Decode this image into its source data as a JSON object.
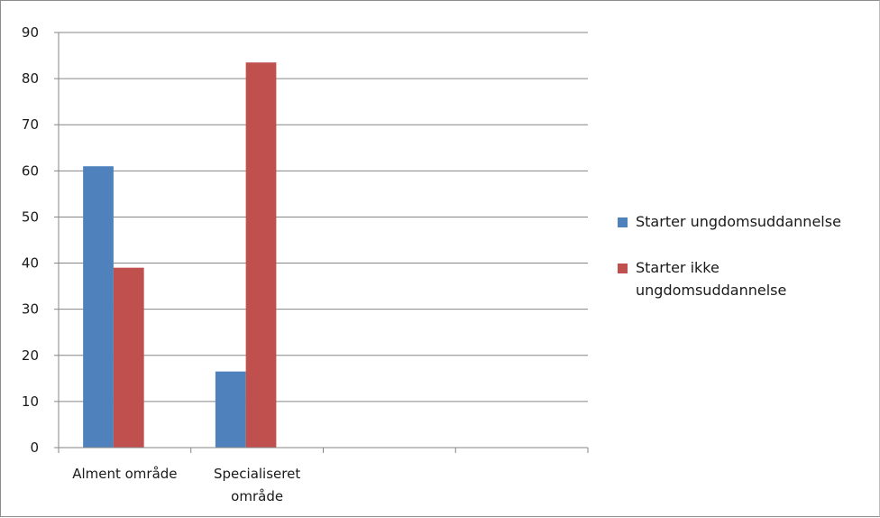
{
  "chart_data": {
    "type": "bar",
    "categories": [
      "Alment område",
      "Specialiseret område",
      "",
      ""
    ],
    "series": [
      {
        "name": "Starter ungdomsuddannelse",
        "color": "#4f81bd",
        "values": [
          61,
          16.5,
          null,
          null
        ]
      },
      {
        "name": "Starter ikke ungdomsuddannelse",
        "color": "#c0504d",
        "values": [
          39,
          83.5,
          null,
          null
        ]
      }
    ],
    "title": "",
    "xlabel": "",
    "ylabel": "",
    "ylim": [
      0,
      90
    ],
    "yticks": [
      0,
      10,
      20,
      30,
      40,
      50,
      60,
      70,
      80,
      90
    ],
    "grid": true,
    "legend_position": "right"
  }
}
